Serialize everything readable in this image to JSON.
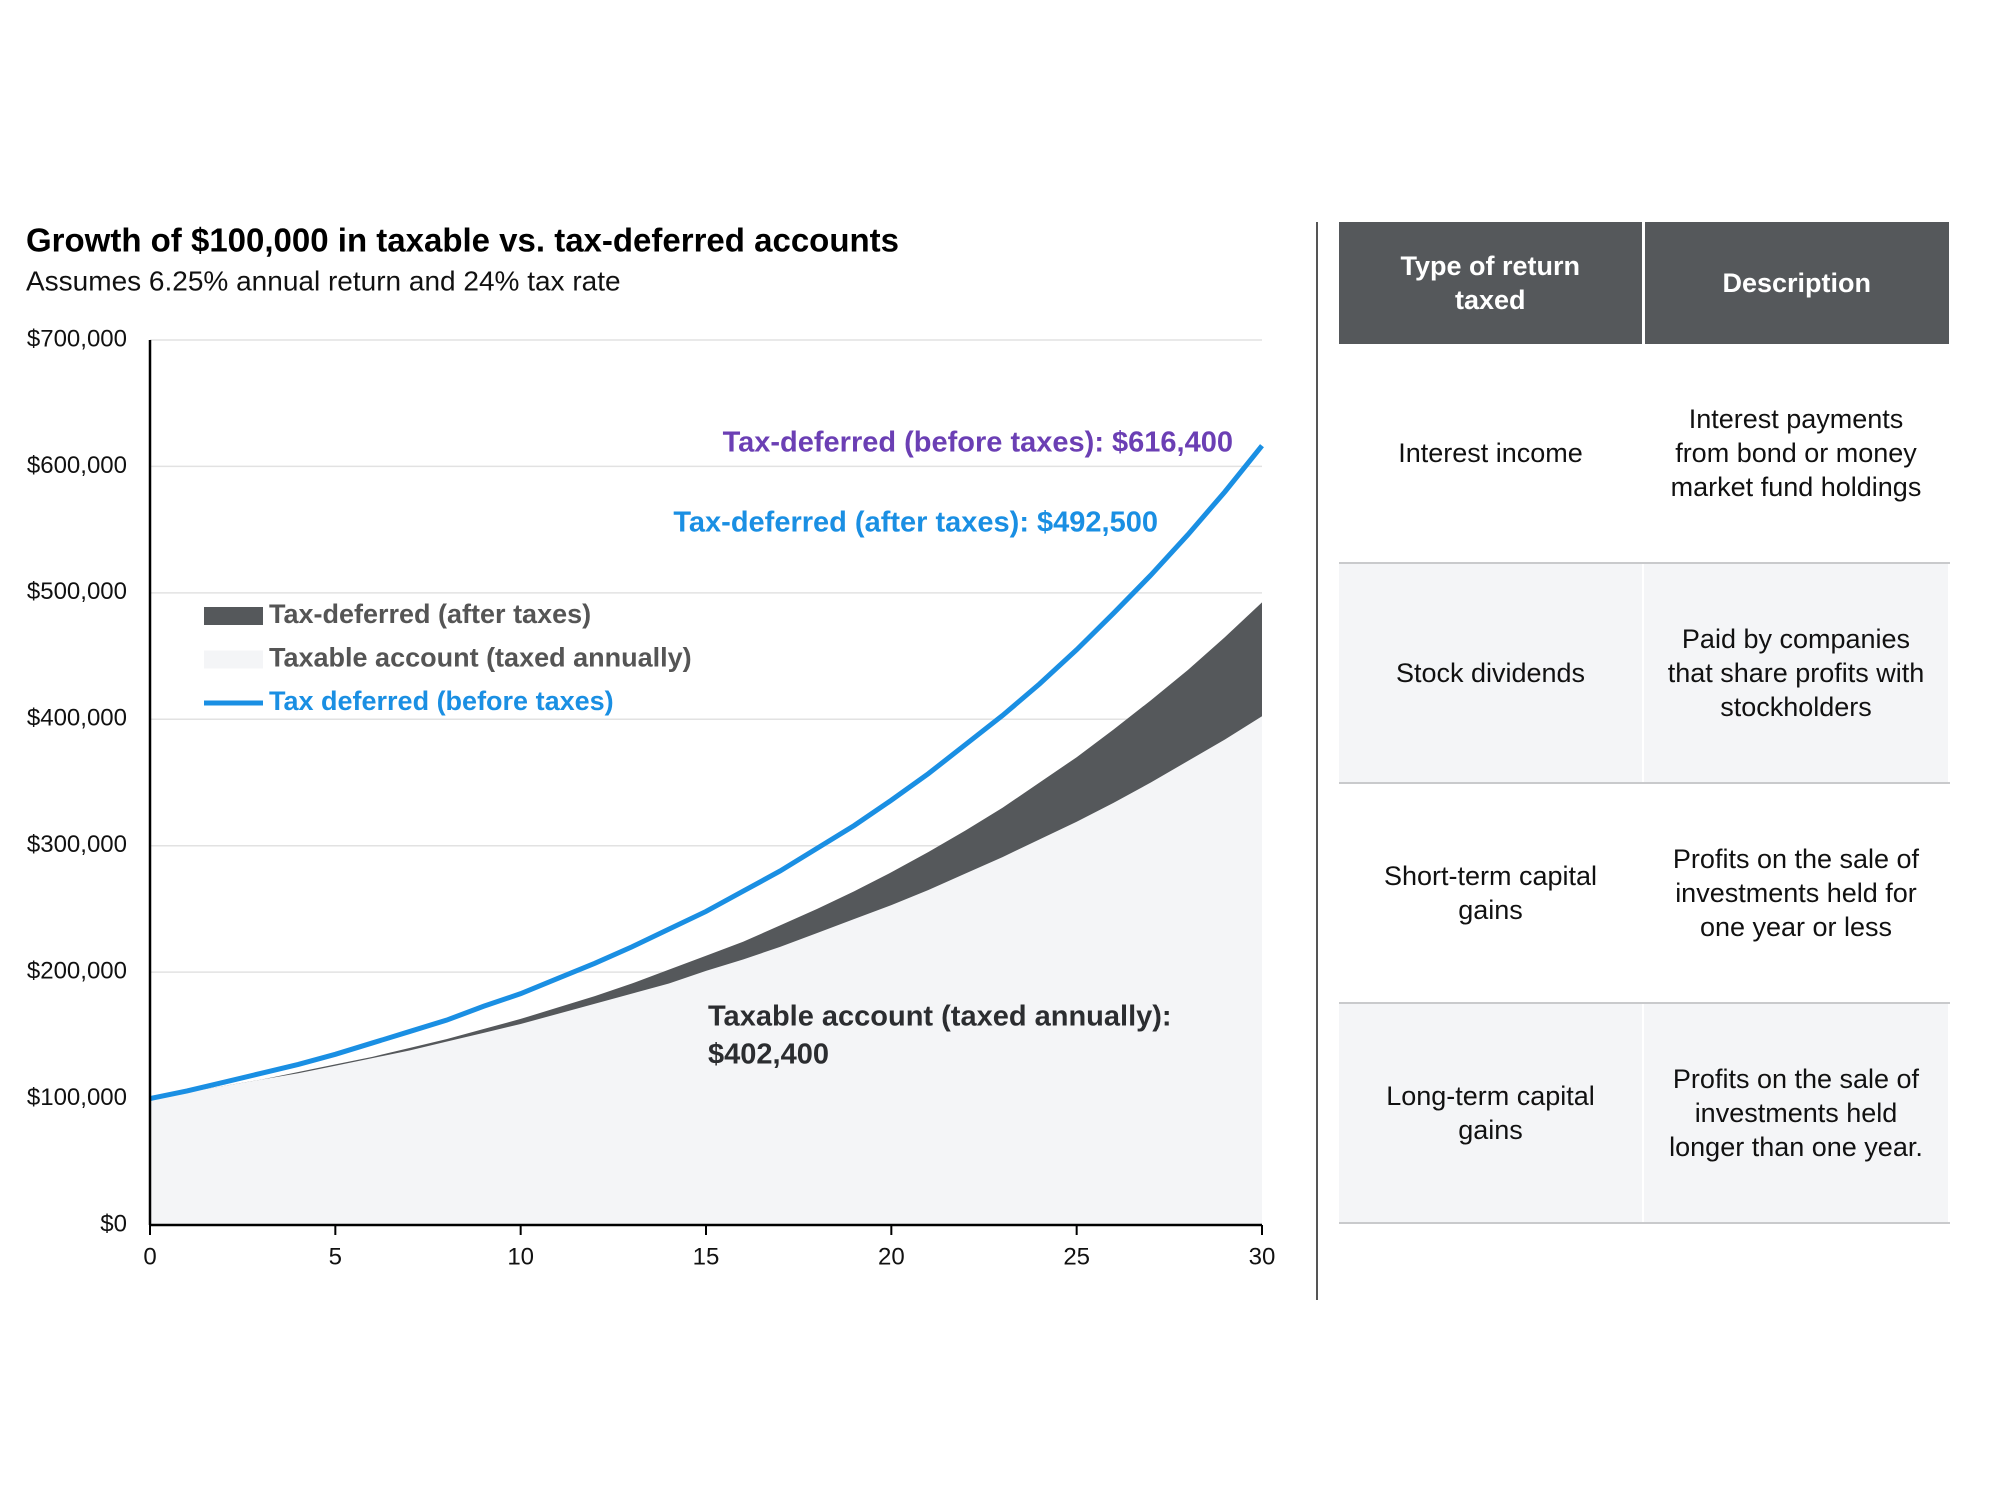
{
  "chart_data": {
    "type": "line",
    "title": "Growth of $100,000 in taxable vs. tax-deferred accounts",
    "subtitle": "Assumes 6.25% annual return and 24% tax rate",
    "x": [
      0,
      1,
      2,
      3,
      4,
      5,
      6,
      7,
      8,
      9,
      10,
      11,
      12,
      13,
      14,
      15,
      16,
      17,
      18,
      19,
      20,
      21,
      22,
      23,
      24,
      25,
      26,
      27,
      28,
      29,
      30
    ],
    "series": [
      {
        "name": "Tax-deferred (after taxes)",
        "type": "area",
        "color": "#55585b",
        "values": [
          100000,
          105000,
          110000,
          115000,
          121000,
          127000,
          133000,
          140000,
          147000,
          155000,
          163000,
          172000,
          181000,
          191000,
          202000,
          213000,
          224000,
          237000,
          250000,
          264000,
          279000,
          295000,
          312000,
          330000,
          350000,
          370000,
          392000,
          415000,
          439000,
          465000,
          492500
        ]
      },
      {
        "name": "Taxable account (taxed annually)",
        "type": "area",
        "color": "#f4f5f7",
        "values": [
          100000,
          105000,
          110000,
          115000,
          120000,
          126000,
          132000,
          138000,
          145000,
          152000,
          159000,
          167000,
          175000,
          183000,
          191000,
          201000,
          210000,
          220000,
          231000,
          242000,
          253000,
          265000,
          278000,
          291000,
          305000,
          319000,
          334000,
          350000,
          367000,
          384000,
          402400
        ]
      },
      {
        "name": "Tax deferred (before taxes)",
        "type": "line",
        "color": "#1a8fe3",
        "values": [
          100000,
          106000,
          113000,
          120000,
          127000,
          135000,
          144000,
          153000,
          162000,
          173000,
          183000,
          195000,
          207000,
          220000,
          234000,
          248000,
          264000,
          280000,
          298000,
          316000,
          336000,
          357000,
          380000,
          403000,
          428000,
          455000,
          484000,
          514000,
          546000,
          580000,
          616400
        ]
      }
    ],
    "annotations": [
      {
        "text": "Tax-deferred (before taxes): $616,400",
        "color": "#6b3fb4"
      },
      {
        "text": "Tax-deferred (after taxes): $492,500",
        "color": "#1a8fe3"
      },
      {
        "text": [
          "Taxable account (taxed annually):",
          "$402,400"
        ],
        "color": "#2b2d30"
      }
    ],
    "xlim": [
      0,
      30
    ],
    "xticks": [
      0,
      5,
      10,
      15,
      20,
      25,
      30
    ],
    "ylim": [
      0,
      700000
    ],
    "yticks": [
      {
        "value": 0,
        "label": "$0"
      },
      {
        "value": 100000,
        "label": "$100,000"
      },
      {
        "value": 200000,
        "label": "$200,000"
      },
      {
        "value": 300000,
        "label": "$300,000"
      },
      {
        "value": 400000,
        "label": "$400,000"
      },
      {
        "value": 500000,
        "label": "$500,000"
      },
      {
        "value": 600000,
        "label": "$600,000"
      },
      {
        "value": 700000,
        "label": "$700,000"
      }
    ],
    "grid": true,
    "legend": "center-left"
  },
  "table": {
    "header": [
      "Type of return taxed",
      "Description"
    ],
    "rows": [
      [
        "Interest income",
        "Interest payments from bond or money market fund holdings"
      ],
      [
        "Stock dividends",
        "Paid by companies that share profits with stockholders"
      ],
      [
        "Short-term capital gains",
        "Profits on the sale of investments held for one year or less"
      ],
      [
        "Long-term capital gains",
        "Profits on the sale of investments held longer than one year."
      ]
    ]
  }
}
